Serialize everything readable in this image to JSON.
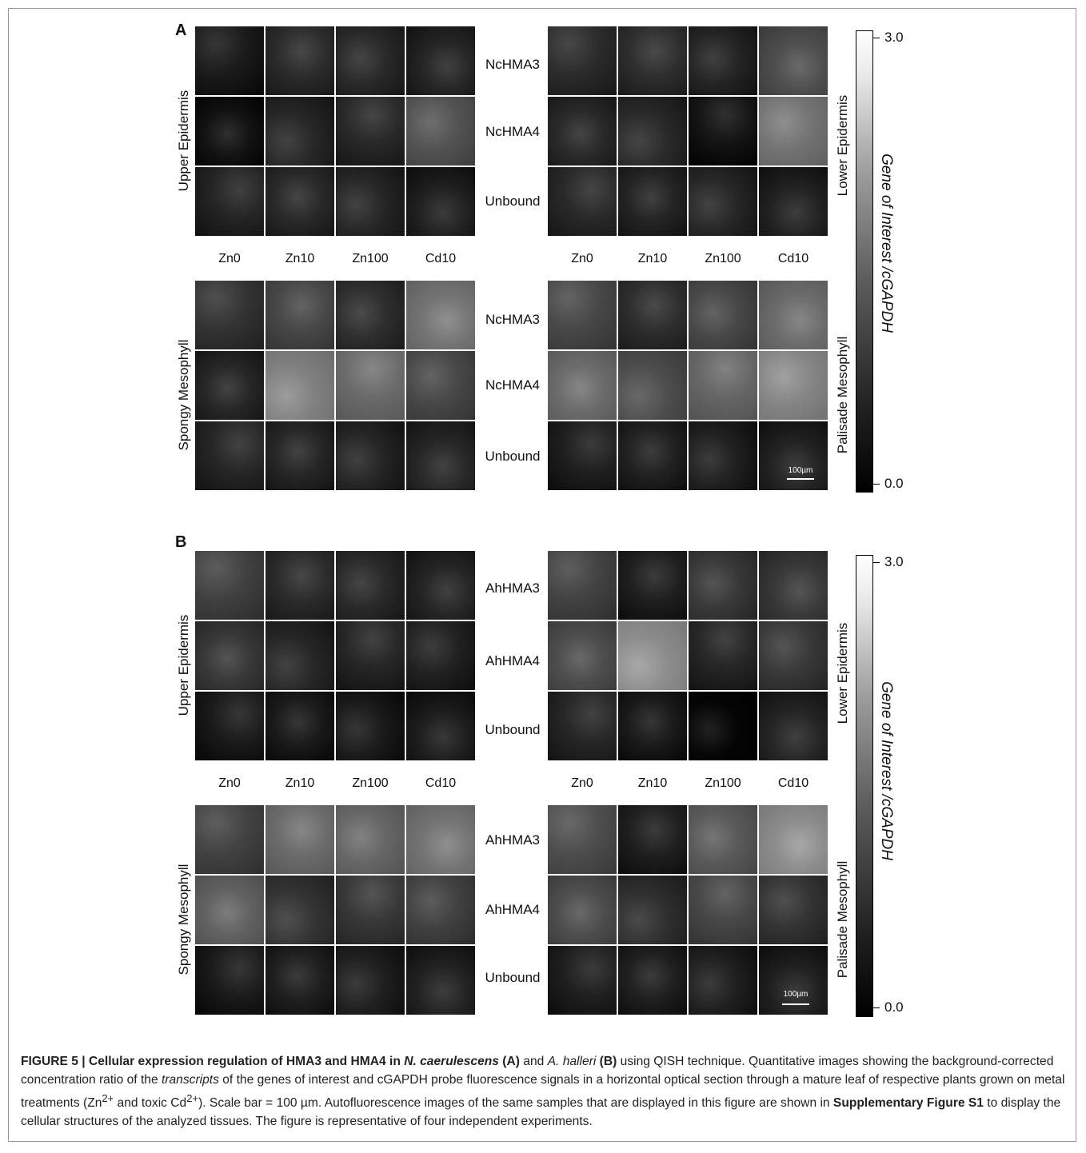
{
  "figure": {
    "panel_a": {
      "label": "A",
      "rows": [
        "NcHMA3",
        "NcHMA4",
        "Unbound"
      ],
      "columns": [
        "Zn0",
        "Zn10",
        "Zn100",
        "Cd10"
      ],
      "tissues": {
        "top_left": "Upper Epidermis",
        "top_right": "Lower Epidermis",
        "bottom_left": "Spongy Mesophyll",
        "bottom_right": "Palisade Mesophyll"
      },
      "scale_bar": "100µm",
      "colorbar": {
        "max": "3.0",
        "min": "0.0",
        "title": "Gene of Interest /cGAPDH"
      }
    },
    "panel_b": {
      "label": "B",
      "rows": [
        "AhHMA3",
        "AhHMA4",
        "Unbound"
      ],
      "columns": [
        "Zn0",
        "Zn10",
        "Zn100",
        "Cd10"
      ],
      "tissues": {
        "top_left": "Upper Epidermis",
        "top_right": "Lower Epidermis",
        "bottom_left": "Spongy Mesophyll",
        "bottom_right": "Palisade Mesophyll"
      },
      "scale_bar": "100µm",
      "colorbar": {
        "max": "3.0",
        "min": "0.0",
        "title": "Gene of Interest /cGAPDH"
      }
    }
  },
  "caption": {
    "figure_label": "FIGURE 5 | Cellular expression regulation of HMA3 and HMA4 in ",
    "species_a": "N. caerulescens",
    "panel_a_ref": "(A)",
    "and_text": " and ",
    "species_b": "A. halleri",
    "panel_b_ref": "(B)",
    "text_1": " using QISH technique. Quantitative images showing the background-corrected concentration ratio of the ",
    "transcripts": "transcripts",
    "text_2": " of the genes of interest and cGAPDH probe fluorescence signals in a horizontal optical section through a mature leaf of respective plants grown on metal treatments (Zn",
    "sup_1": "2+",
    "text_3": " and toxic Cd",
    "sup_2": "2+",
    "text_4": "). Scale bar = 100 µm. Autofluorescence images of the same samples that are displayed in this figure are shown in ",
    "supp_ref": "Supplementary Figure S1",
    "text_5": " to display the cellular structures of the analyzed tissues. The figure is representative of four independent experiments."
  },
  "image_brightness": {
    "panel_a": {
      "upper_epidermis": [
        [
          0.1,
          0.17,
          0.16,
          0.14
        ],
        [
          0.07,
          0.15,
          0.16,
          0.32
        ],
        [
          0.14,
          0.16,
          0.15,
          0.12
        ]
      ],
      "lower_epidermis": [
        [
          0.17,
          0.18,
          0.14,
          0.3
        ],
        [
          0.16,
          0.16,
          0.08,
          0.45
        ],
        [
          0.16,
          0.14,
          0.15,
          0.13
        ]
      ],
      "spongy_mesophyll": [
        [
          0.2,
          0.28,
          0.18,
          0.45
        ],
        [
          0.15,
          0.5,
          0.42,
          0.28
        ],
        [
          0.15,
          0.15,
          0.14,
          0.15
        ]
      ],
      "palisade_mesophyll": [
        [
          0.28,
          0.18,
          0.28,
          0.42
        ],
        [
          0.42,
          0.3,
          0.4,
          0.52
        ],
        [
          0.12,
          0.13,
          0.12,
          0.13
        ]
      ]
    },
    "panel_b": {
      "upper_epidermis": [
        [
          0.25,
          0.17,
          0.16,
          0.14
        ],
        [
          0.22,
          0.15,
          0.15,
          0.13
        ],
        [
          0.1,
          0.1,
          0.1,
          0.11
        ]
      ],
      "lower_epidermis": [
        [
          0.26,
          0.12,
          0.22,
          0.22
        ],
        [
          0.3,
          0.55,
          0.15,
          0.22
        ],
        [
          0.15,
          0.1,
          0.02,
          0.14
        ]
      ],
      "spongy_mesophyll": [
        [
          0.26,
          0.42,
          0.4,
          0.45
        ],
        [
          0.38,
          0.2,
          0.22,
          0.25
        ],
        [
          0.1,
          0.12,
          0.12,
          0.13
        ]
      ],
      "palisade_mesophyll": [
        [
          0.3,
          0.12,
          0.35,
          0.55
        ],
        [
          0.3,
          0.18,
          0.28,
          0.2
        ],
        [
          0.12,
          0.12,
          0.12,
          0.12
        ]
      ]
    }
  }
}
